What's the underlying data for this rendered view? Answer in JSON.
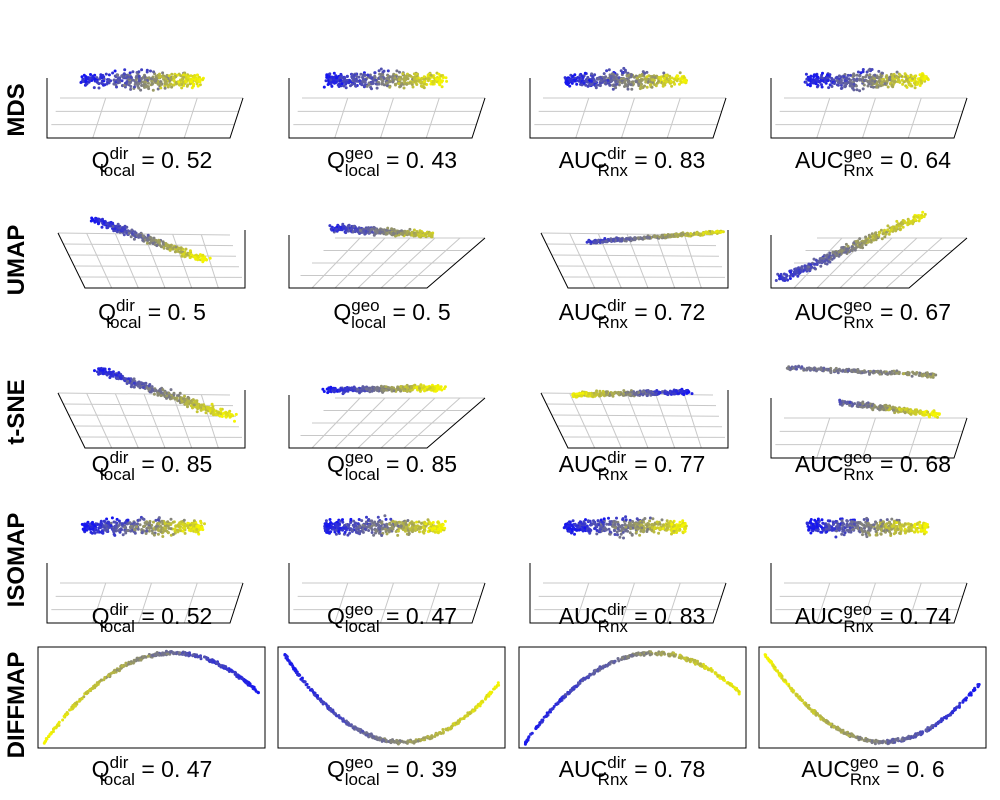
{
  "chart_data": {
    "type": "scatter",
    "title": "",
    "colormap": [
      "#1515f0",
      "#808080",
      "#f5f500"
    ],
    "methods": [
      "MDS",
      "UMAP",
      "t-SNE",
      "ISOMAP",
      "DIFFMAP"
    ],
    "metric_labels": [
      {
        "base": "Q",
        "sup": "dir",
        "sub": "local"
      },
      {
        "base": "Q",
        "sup": "geo",
        "sub": "local"
      },
      {
        "base": "AUC",
        "sup": "dir",
        "sub": "Rnx"
      },
      {
        "base": "AUC",
        "sup": "geo",
        "sub": "Rnx"
      }
    ],
    "scores": [
      [
        "0. 52",
        "0. 43",
        "0. 83",
        "0. 64"
      ],
      [
        "0. 5",
        "0. 5",
        "0. 72",
        "0. 67"
      ],
      [
        "0. 85",
        "0. 85",
        "0. 77",
        "0. 68"
      ],
      [
        "0. 52",
        "0. 47",
        "0. 83",
        "0. 74"
      ],
      [
        "0. 47",
        "0. 39",
        "0. 78",
        "0. 6"
      ]
    ],
    "panel_kinds": [
      [
        "cloud3d",
        "cloud3d",
        "cloud3d",
        "cloud3d"
      ],
      [
        "band3d",
        "band3d",
        "band3d",
        "band3d"
      ],
      [
        "tsne3d",
        "tsne3d",
        "tsne3d",
        "tsne3d"
      ],
      [
        "cloud3d",
        "cloud3d",
        "cloud3d",
        "cloud3d"
      ],
      [
        "arc2d",
        "arc2d",
        "arc2d",
        "arc2d"
      ]
    ],
    "diffmap_curves": [
      {
        "shape": "arc-up",
        "blue_end": "right"
      },
      {
        "shape": "bowl",
        "blue_end": "left"
      },
      {
        "shape": "arc-up",
        "blue_end": "left"
      },
      {
        "shape": "bowl",
        "blue_end": "right"
      }
    ],
    "point_color_range": [
      0,
      1
    ],
    "xlabel": "",
    "ylabel": ""
  }
}
